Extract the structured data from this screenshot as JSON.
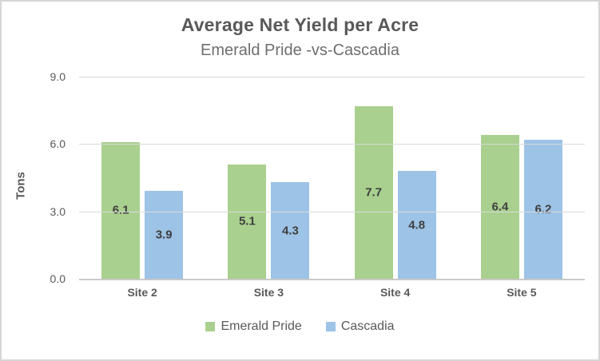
{
  "chart_data": {
    "type": "bar",
    "title": "Average Net Yield per Acre",
    "subtitle": "Emerald Pride -vs-Cascadia",
    "ylabel": "Tons",
    "xlabel": "",
    "categories": [
      "Site 2",
      "Site 3",
      "Site 4",
      "Site 5"
    ],
    "series": [
      {
        "name": "Emerald Pride",
        "color": "#a9d08e",
        "values": [
          6.1,
          5.1,
          7.7,
          6.4
        ]
      },
      {
        "name": "Cascadia",
        "color": "#9dc3e6",
        "values": [
          3.9,
          4.3,
          4.8,
          6.2
        ]
      }
    ],
    "yticks": [
      "0.0",
      "3.0",
      "6.0",
      "9.0"
    ],
    "ylim": [
      0,
      9
    ],
    "grid": true,
    "legend_position": "bottom",
    "data_labels": "center",
    "data_label_format": "one-decimal"
  },
  "style": {
    "title_color": "#595959",
    "subtitle_color": "#6e6e6e",
    "tick_color": "#595959",
    "data_label_color": "#3f3f3f",
    "gridline_color": "#d9d9d9",
    "axis_line_color": "#c9c9c9",
    "frame_border_color": "#d5d5d5",
    "background": "#ffffff"
  }
}
